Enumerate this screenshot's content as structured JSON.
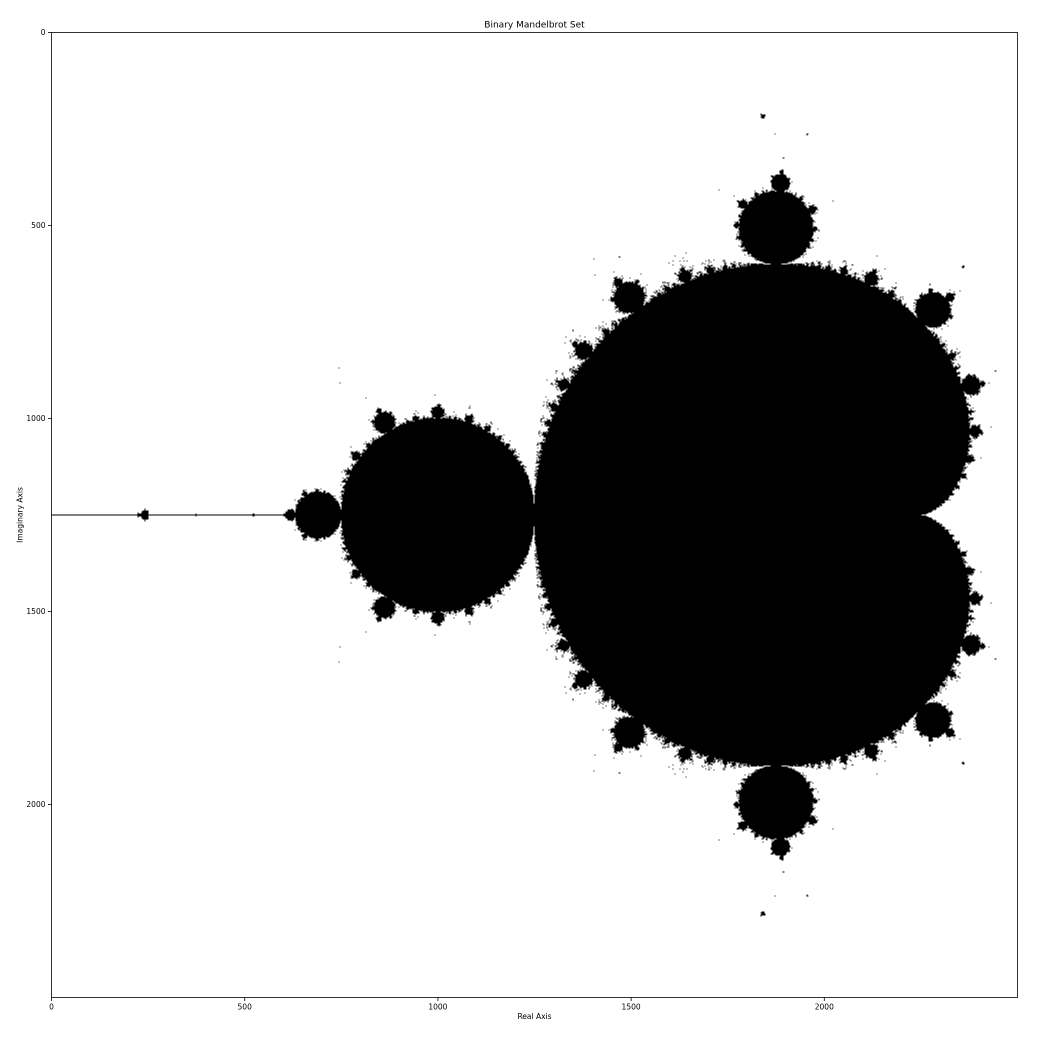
{
  "chart_data": {
    "type": "heatmap",
    "title": "Binary Mandelbrot Set",
    "xlabel": "Real Axis",
    "ylabel": "Imaginary Axis",
    "xlim": [
      0,
      2500
    ],
    "ylim": [
      2500,
      0
    ],
    "x_ticks": [
      0,
      500,
      1000,
      1500,
      2000
    ],
    "y_ticks": [
      0,
      500,
      1000,
      1500,
      2000
    ],
    "grid": false,
    "colormap": {
      "inside": "#000000",
      "outside": "#ffffff"
    },
    "image_size": [
      2500,
      2500
    ]
  }
}
